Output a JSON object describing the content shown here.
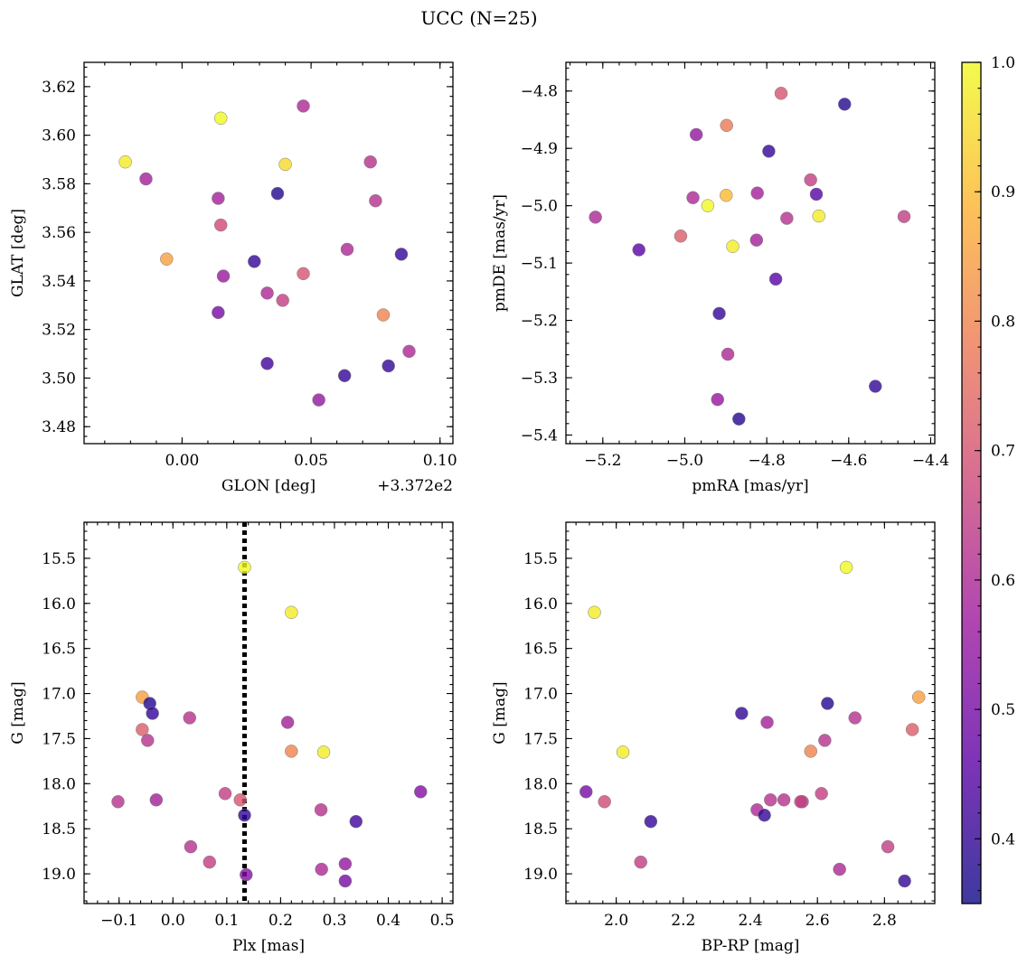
{
  "title": "UCC (N=25)",
  "colormap": {
    "name": "plasma",
    "range": [
      0.35,
      1.0
    ],
    "ticks": [
      "0.4",
      "0.5",
      "0.6",
      "0.7",
      "0.8",
      "0.9",
      "1.0"
    ],
    "stops": [
      "#0d0887",
      "#5c01a6",
      "#9c179e",
      "#cc4778",
      "#ed7953",
      "#fdb42f",
      "#f0f921"
    ],
    "alpha": 0.8
  },
  "chart_data": [
    {
      "type": "scatter",
      "xlabel": "GLON [deg]",
      "ylabel": "GLAT [deg]",
      "offset_text": "+3.372e2",
      "xlim": [
        -0.038,
        0.105
      ],
      "ylim": [
        3.473,
        3.63
      ],
      "xticks": [
        0.0,
        0.05,
        0.1
      ],
      "xtick_labels": [
        "0.00",
        "0.05",
        "0.10"
      ],
      "yticks": [
        3.48,
        3.5,
        3.52,
        3.54,
        3.56,
        3.58,
        3.6,
        3.62
      ],
      "ytick_labels": [
        "3.48",
        "3.50",
        "3.52",
        "3.54",
        "3.56",
        "3.58",
        "3.60",
        "3.62"
      ],
      "x": [
        -0.022,
        0.015,
        0.047,
        -0.014,
        0.014,
        0.037,
        0.04,
        0.073,
        0.075,
        0.015,
        -0.006,
        0.064,
        0.085,
        0.028,
        0.016,
        0.047,
        0.033,
        0.039,
        0.014,
        0.078,
        0.088,
        0.033,
        0.08,
        0.063,
        0.053
      ],
      "y": [
        3.589,
        3.607,
        3.612,
        3.582,
        3.574,
        3.576,
        3.588,
        3.589,
        3.573,
        3.563,
        3.549,
        3.553,
        3.551,
        3.548,
        3.542,
        3.543,
        3.535,
        3.532,
        3.527,
        3.526,
        3.511,
        3.506,
        3.505,
        3.501,
        3.491
      ],
      "c": [
        0.98,
        1.0,
        0.6,
        0.58,
        0.58,
        0.38,
        0.95,
        0.62,
        0.62,
        0.68,
        0.85,
        0.6,
        0.4,
        0.4,
        0.56,
        0.7,
        0.6,
        0.65,
        0.5,
        0.8,
        0.6,
        0.42,
        0.4,
        0.4,
        0.55
      ]
    },
    {
      "type": "scatter",
      "xlabel": "pmRA [mas/yr]",
      "ylabel": "pmDE [mas/yr]",
      "xlim": [
        -5.29,
        -4.39
      ],
      "ylim": [
        -5.415,
        -4.75
      ],
      "xticks": [
        -5.2,
        -5.0,
        -4.8,
        -4.6,
        -4.4
      ],
      "xtick_labels": [
        "−5.2",
        "−5.0",
        "−4.8",
        "−4.6",
        "−4.4"
      ],
      "yticks": [
        -5.4,
        -5.3,
        -5.2,
        -5.1,
        -5.0,
        -4.9,
        -4.8
      ],
      "ytick_labels": [
        "−5.4",
        "−5.3",
        "−5.2",
        "−5.1",
        "−5.0",
        "−4.9",
        "−4.8"
      ],
      "x": [
        -4.765,
        -4.61,
        -4.898,
        -4.972,
        -4.795,
        -4.693,
        -4.679,
        -4.98,
        -4.899,
        -4.823,
        -4.944,
        -4.751,
        -4.673,
        -5.218,
        -5.112,
        -5.01,
        -4.883,
        -4.825,
        -4.465,
        -4.778,
        -4.916,
        -4.895,
        -4.92,
        -4.535,
        -4.868
      ],
      "y": [
        -4.804,
        -4.823,
        -4.86,
        -4.876,
        -4.905,
        -4.955,
        -4.98,
        -4.986,
        -4.982,
        -4.978,
        -5.0,
        -5.022,
        -5.018,
        -5.02,
        -5.077,
        -5.053,
        -5.071,
        -5.06,
        -5.019,
        -5.128,
        -5.188,
        -5.259,
        -5.338,
        -5.315,
        -5.372
      ],
      "c": [
        0.7,
        0.38,
        0.78,
        0.55,
        0.4,
        0.65,
        0.45,
        0.6,
        0.9,
        0.58,
        1.0,
        0.62,
        0.98,
        0.6,
        0.45,
        0.72,
        0.98,
        0.58,
        0.65,
        0.45,
        0.4,
        0.6,
        0.55,
        0.4,
        0.38
      ]
    },
    {
      "type": "scatter",
      "xlabel": "Plx [mas]",
      "ylabel": "G [mag]",
      "invert_y": true,
      "vline": 0.133,
      "xlim": [
        -0.165,
        0.52
      ],
      "ylim": [
        19.33,
        15.1
      ],
      "xticks": [
        -0.1,
        0.0,
        0.1,
        0.2,
        0.3,
        0.4,
        0.5
      ],
      "xtick_labels": [
        "−0.1",
        "0.0",
        "0.1",
        "0.2",
        "0.3",
        "0.4",
        "0.5"
      ],
      "yticks": [
        15.5,
        16.0,
        16.5,
        17.0,
        17.5,
        18.0,
        18.5,
        19.0
      ],
      "ytick_labels": [
        "15.5",
        "16.0",
        "16.5",
        "17.0",
        "17.5",
        "18.0",
        "18.5",
        "19.0"
      ],
      "x": [
        0.133,
        0.22,
        -0.057,
        -0.043,
        -0.038,
        0.031,
        0.213,
        -0.057,
        -0.047,
        0.22,
        0.28,
        0.46,
        -0.102,
        -0.031,
        0.097,
        0.125,
        0.275,
        0.133,
        0.34,
        0.033,
        0.068,
        0.32,
        0.276,
        0.136,
        0.32
      ],
      "y": [
        15.6,
        16.1,
        17.04,
        17.11,
        17.22,
        17.27,
        17.32,
        17.4,
        17.52,
        17.64,
        17.65,
        18.09,
        18.2,
        18.18,
        18.11,
        18.18,
        18.29,
        18.35,
        18.42,
        18.7,
        18.87,
        18.89,
        18.95,
        19.01,
        19.08
      ],
      "c": [
        1.0,
        0.98,
        0.85,
        0.38,
        0.4,
        0.62,
        0.58,
        0.72,
        0.62,
        0.8,
        0.98,
        0.52,
        0.62,
        0.58,
        0.65,
        0.7,
        0.62,
        0.4,
        0.42,
        0.62,
        0.65,
        0.55,
        0.6,
        0.52,
        0.5
      ]
    },
    {
      "type": "scatter",
      "xlabel": "BP-RP [mag]",
      "ylabel": "G [mag]",
      "invert_y": true,
      "xlim": [
        1.85,
        2.95
      ],
      "ylim": [
        19.33,
        15.1
      ],
      "xticks": [
        2.0,
        2.2,
        2.4,
        2.6,
        2.8
      ],
      "xtick_labels": [
        "2.0",
        "2.2",
        "2.4",
        "2.6",
        "2.8"
      ],
      "yticks": [
        15.5,
        16.0,
        16.5,
        17.0,
        17.5,
        18.0,
        18.5,
        19.0
      ],
      "ytick_labels": [
        "15.5",
        "16.0",
        "16.5",
        "17.0",
        "17.5",
        "18.0",
        "18.5",
        "19.0"
      ],
      "x": [
        2.686,
        1.935,
        2.902,
        2.63,
        2.374,
        2.712,
        2.45,
        2.883,
        2.622,
        2.58,
        2.02,
        1.91,
        1.965,
        2.555,
        2.612,
        2.46,
        2.42,
        2.442,
        2.103,
        2.81,
        2.073,
        2.666,
        2.86,
        2.55,
        2.5
      ],
      "y": [
        15.6,
        16.1,
        17.04,
        17.11,
        17.22,
        17.27,
        17.32,
        17.4,
        17.52,
        17.64,
        17.65,
        18.09,
        18.2,
        18.2,
        18.11,
        18.18,
        18.29,
        18.35,
        18.42,
        18.7,
        18.87,
        18.95,
        19.08,
        18.2,
        18.18
      ],
      "c": [
        1.0,
        0.98,
        0.85,
        0.38,
        0.4,
        0.62,
        0.58,
        0.72,
        0.62,
        0.8,
        0.98,
        0.5,
        0.68,
        0.65,
        0.65,
        0.62,
        0.6,
        0.4,
        0.4,
        0.65,
        0.65,
        0.6,
        0.4,
        0.65,
        0.62
      ]
    }
  ]
}
